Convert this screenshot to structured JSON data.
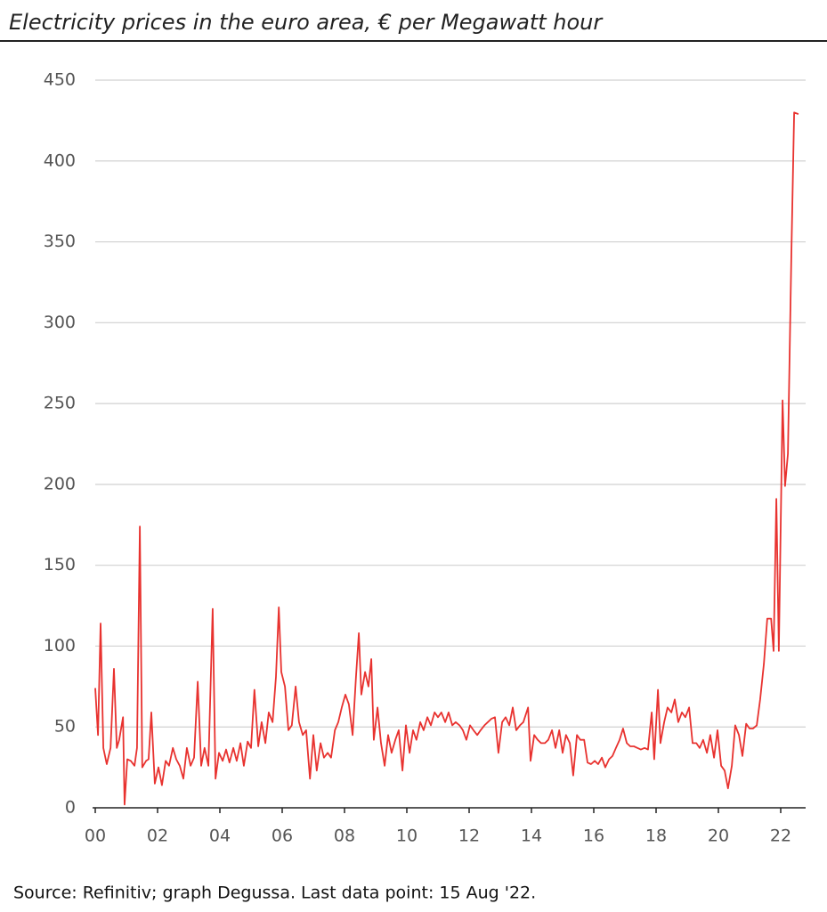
{
  "chart_data": {
    "type": "line",
    "title": "Electricity prices in the euro area, € per Megawatt hour",
    "source": "Source: Refinitiv; graph Degussa. Last data point: 15 Aug '22.",
    "color": "#e8322f",
    "x": [
      2000,
      2000.09,
      2000.17,
      2000.26,
      2000.37,
      2000.49,
      2000.6,
      2000.69,
      2000.77,
      2000.89,
      2000.94,
      2001.03,
      2001.14,
      2001.26,
      2001.34,
      2001.43,
      2001.51,
      2001.63,
      2001.71,
      2001.8,
      2001.91,
      2002.03,
      2002.14,
      2002.26,
      2002.37,
      2002.49,
      2002.6,
      2002.71,
      2002.83,
      2002.94,
      2003.06,
      2003.17,
      2003.29,
      2003.4,
      2003.51,
      2003.63,
      2003.77,
      2003.86,
      2003.97,
      2004.09,
      2004.2,
      2004.31,
      2004.43,
      2004.54,
      2004.66,
      2004.77,
      2004.89,
      2005,
      2005.11,
      2005.23,
      2005.34,
      2005.46,
      2005.57,
      2005.69,
      2005.8,
      2005.89,
      2005.97,
      2006.09,
      2006.2,
      2006.31,
      2006.43,
      2006.54,
      2006.66,
      2006.77,
      2006.89,
      2007,
      2007.11,
      2007.23,
      2007.34,
      2007.46,
      2007.57,
      2007.69,
      2007.8,
      2007.91,
      2008.03,
      2008.14,
      2008.26,
      2008.37,
      2008.46,
      2008.54,
      2008.66,
      2008.77,
      2008.86,
      2008.94,
      2009.06,
      2009.17,
      2009.29,
      2009.4,
      2009.51,
      2009.63,
      2009.74,
      2009.86,
      2009.97,
      2010.09,
      2010.2,
      2010.31,
      2010.43,
      2010.54,
      2010.66,
      2010.77,
      2010.89,
      2011,
      2011.11,
      2011.23,
      2011.34,
      2011.46,
      2011.57,
      2011.69,
      2011.8,
      2011.91,
      2012.03,
      2012.14,
      2012.26,
      2012.37,
      2012.49,
      2012.6,
      2012.71,
      2012.83,
      2012.94,
      2013.06,
      2013.17,
      2013.29,
      2013.4,
      2013.51,
      2013.63,
      2013.74,
      2013.89,
      2013.97,
      2014.09,
      2014.2,
      2014.31,
      2014.43,
      2014.54,
      2014.66,
      2014.77,
      2014.89,
      2015,
      2015.11,
      2015.23,
      2015.34,
      2015.46,
      2015.57,
      2015.69,
      2015.8,
      2015.91,
      2016.03,
      2016.14,
      2016.26,
      2016.37,
      2016.49,
      2016.6,
      2016.71,
      2016.83,
      2016.94,
      2017.06,
      2017.17,
      2017.29,
      2017.4,
      2017.51,
      2017.63,
      2017.74,
      2017.86,
      2017.94,
      2018.06,
      2018.14,
      2018.26,
      2018.37,
      2018.49,
      2018.6,
      2018.71,
      2018.83,
      2018.94,
      2019.06,
      2019.17,
      2019.29,
      2019.4,
      2019.51,
      2019.63,
      2019.74,
      2019.86,
      2019.97,
      2020.09,
      2020.2,
      2020.31,
      2020.43,
      2020.54,
      2020.66,
      2020.77,
      2020.89,
      2021,
      2021.11,
      2021.23,
      2021.34,
      2021.46,
      2021.57,
      2021.69,
      2021.77,
      2021.86,
      2021.94,
      2022.06,
      2022.14,
      2022.23,
      2022.34,
      2022.43,
      2022.57
    ],
    "values": [
      74,
      45,
      114,
      37,
      27,
      37,
      86,
      37,
      42,
      56,
      2,
      30,
      29,
      26,
      37,
      174,
      25,
      29,
      30,
      59,
      15,
      25,
      14,
      29,
      26,
      37,
      30,
      26,
      18,
      37,
      26,
      31,
      78,
      26,
      37,
      26,
      123,
      18,
      34,
      29,
      36,
      28,
      37,
      29,
      40,
      26,
      41,
      37,
      73,
      38,
      53,
      40,
      59,
      53,
      81,
      124,
      84,
      75,
      48,
      51,
      75,
      53,
      45,
      48,
      18,
      45,
      23,
      40,
      31,
      34,
      31,
      48,
      53,
      62,
      70,
      64,
      45,
      81,
      108,
      70,
      84,
      75,
      92,
      42,
      62,
      40,
      26,
      45,
      34,
      42,
      48,
      23,
      51,
      34,
      48,
      42,
      53,
      48,
      56,
      51,
      59,
      56,
      59,
      53,
      59,
      51,
      53,
      51,
      48,
      42,
      51,
      48,
      45,
      48,
      51,
      53,
      55,
      56,
      34,
      53,
      56,
      51,
      62,
      48,
      51,
      53,
      62,
      29,
      45,
      42,
      40,
      40,
      42,
      48,
      37,
      48,
      34,
      45,
      40,
      20,
      45,
      42,
      42,
      28,
      27,
      29,
      27,
      31,
      25,
      30,
      32,
      37,
      42,
      49,
      40,
      38,
      38,
      37,
      36,
      37,
      36,
      59,
      30,
      73,
      40,
      53,
      62,
      59,
      67,
      53,
      59,
      56,
      62,
      40,
      40,
      37,
      42,
      34,
      45,
      31,
      48,
      26,
      23,
      12,
      26,
      51,
      45,
      32,
      52,
      49,
      49,
      51,
      67,
      89,
      117,
      117,
      97,
      191,
      97,
      252,
      199,
      219,
      340,
      430,
      429
    ],
    "xlim": [
      2000,
      2022.8
    ],
    "xticks": [
      {
        "value": 2000,
        "label": "00"
      },
      {
        "value": 2002,
        "label": "02"
      },
      {
        "value": 2004,
        "label": "04"
      },
      {
        "value": 2006,
        "label": "06"
      },
      {
        "value": 2008,
        "label": "08"
      },
      {
        "value": 2010,
        "label": "10"
      },
      {
        "value": 2012,
        "label": "12"
      },
      {
        "value": 2014,
        "label": "14"
      },
      {
        "value": 2016,
        "label": "16"
      },
      {
        "value": 2018,
        "label": "18"
      },
      {
        "value": 2020,
        "label": "20"
      },
      {
        "value": 2022,
        "label": "22"
      }
    ],
    "ylim": [
      0,
      450
    ],
    "yticks": [
      0,
      50,
      100,
      150,
      200,
      250,
      300,
      350,
      400,
      450
    ],
    "grid": true
  }
}
